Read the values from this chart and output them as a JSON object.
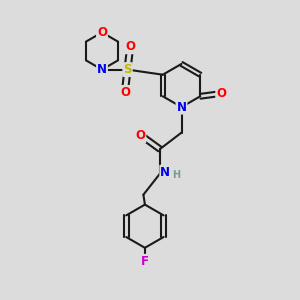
{
  "bg_color": "#dcdcdc",
  "bond_color": "#1a1a1a",
  "bond_width": 1.5,
  "atom_colors": {
    "O": "#ff0000",
    "N": "#0000ee",
    "S": "#bbbb00",
    "F": "#cc00cc",
    "H": "#7a9a9a",
    "C": "#1a1a1a"
  },
  "font_size_atom": 8.5,
  "font_size_h": 7.0
}
